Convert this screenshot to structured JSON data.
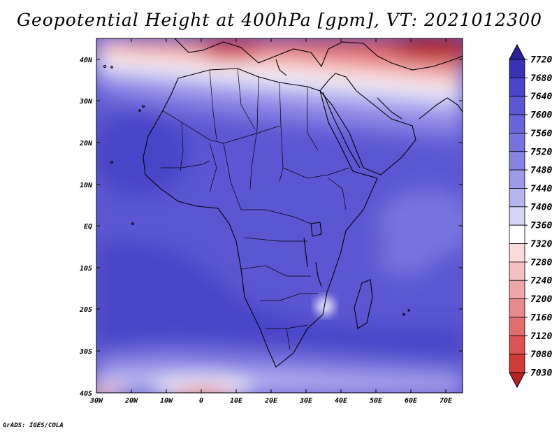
{
  "title": "Geopotential Height at 400hPa [gpm], VT: 2021012300",
  "credit": "GrADS: IGES/COLA",
  "map": {
    "lon_ticks": [
      "30W",
      "20W",
      "10W",
      "0",
      "10E",
      "20E",
      "30E",
      "40E",
      "50E",
      "60E",
      "70E"
    ],
    "lat_ticks": [
      "40N",
      "30N",
      "20N",
      "10N",
      "EQ",
      "10S",
      "20S",
      "30S",
      "40S"
    ]
  },
  "colorbar": {
    "levels": [
      "7720",
      "7680",
      "7640",
      "7600",
      "7560",
      "7520",
      "7480",
      "7440",
      "7400",
      "7360",
      "7320",
      "7280",
      "7240",
      "7200",
      "7160",
      "7120",
      "7080",
      "7030"
    ],
    "colors": [
      "#2a209e",
      "#3a32b4",
      "#4a45c8",
      "#5b57d2",
      "#6865d8",
      "#7673de",
      "#8683e4",
      "#9d9aea",
      "#b7b5f0",
      "#d6d5f7",
      "#ffffff",
      "#fadada",
      "#f5c0c0",
      "#eea6a6",
      "#e88b8b",
      "#e26e6e",
      "#dc5353",
      "#d23a3a",
      "#b82020"
    ]
  }
}
